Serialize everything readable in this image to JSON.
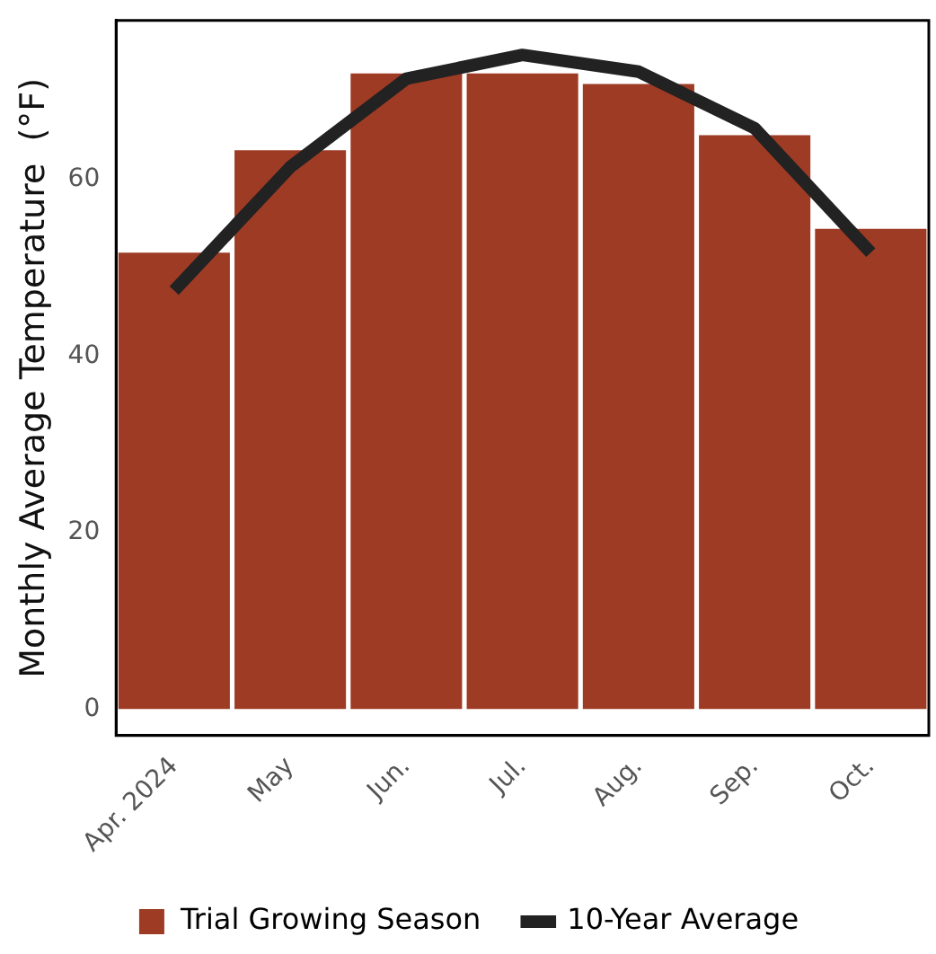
{
  "chart_data": {
    "type": "bar",
    "ylabel": "Monthly Average Temperature  (°F)",
    "categories": [
      "Apr. 2024",
      "May",
      "Jun.",
      "Jul.",
      "Aug.",
      "Sep.",
      "Oct."
    ],
    "series": [
      {
        "name": "Trial Growing Season",
        "color": "#9e3b24",
        "values": [
          51.7,
          63.3,
          72,
          72,
          70.8,
          65,
          54.4
        ]
      },
      {
        "name": "10-Year Average",
        "type": "line",
        "color": "#222222",
        "values": [
          47.4,
          61.4,
          71.4,
          74.1,
          72.2,
          65.8,
          51.7
        ]
      }
    ],
    "ylim": [
      -3,
      78
    ],
    "yticks": [
      0,
      20,
      40,
      60
    ],
    "grid": false,
    "legend": "bottom",
    "marker": "none",
    "line_style": "solid"
  }
}
